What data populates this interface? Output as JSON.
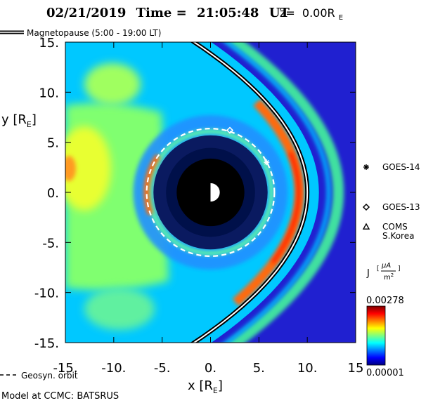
{
  "chart_data": {
    "type": "heatmap",
    "title_date": "02/21/2019",
    "title_time_label": "Time =",
    "title_time_value": "21:05:48",
    "title_time_unit": "UT",
    "title_z_label": "z=",
    "title_z_value": "0.00R",
    "title_z_sub": "E",
    "xlabel": "x [R",
    "xlabel_sub": "E",
    "xlabel_end": "]",
    "ylabel": "y [R",
    "ylabel_sub": "E",
    "ylabel_end": "]",
    "xlim": [
      -15,
      15
    ],
    "ylim": [
      -15,
      15
    ],
    "xticks": [
      -15,
      -10,
      -5,
      0,
      5,
      10,
      15
    ],
    "xtick_labels": [
      "-15.",
      "-10.",
      "-5.",
      "0.",
      "5.",
      "10.",
      "15"
    ],
    "yticks": [
      15,
      10,
      5,
      0,
      -5,
      -10,
      -15
    ],
    "ytick_labels": [
      "15.",
      "10.",
      "5.",
      "0.",
      "-5.",
      "-10.",
      "-15."
    ],
    "colorbar": {
      "label": "J",
      "unit_num": "μA",
      "unit_den": "m",
      "unit_den_exp": "2",
      "max_label": "0.00278",
      "min_label": "0.00001",
      "max": 0.00278,
      "min": 1e-05,
      "colors": [
        "#00007f",
        "#0000ff",
        "#007fff",
        "#00ffff",
        "#7fff7f",
        "#ffff00",
        "#ff7f00",
        "#ff0000",
        "#7f0000"
      ]
    },
    "magnetopause": {
      "legend_label": "Magnetopause (5:00 - 19:00 LT)",
      "standoff_x": 10.0,
      "flank_y": 15.0,
      "flank_x": -1.7
    },
    "geosync_orbit": {
      "legend_label": "Geosyn. orbit",
      "radius": 6.6
    },
    "inner_boundary_radius": 3.5,
    "satellites": [
      {
        "name": "GOES-14",
        "symbol": "asterisk",
        "x": 5.8,
        "y": 3.0
      },
      {
        "name": "GOES-13",
        "symbol": "diamond",
        "x": 2.0,
        "y": 6.2
      },
      {
        "name": "COMS\nS.Korea",
        "symbol": "triangle",
        "x": null,
        "y": null
      }
    ],
    "model_credit": "Model at CCMC: BATSRUS"
  }
}
